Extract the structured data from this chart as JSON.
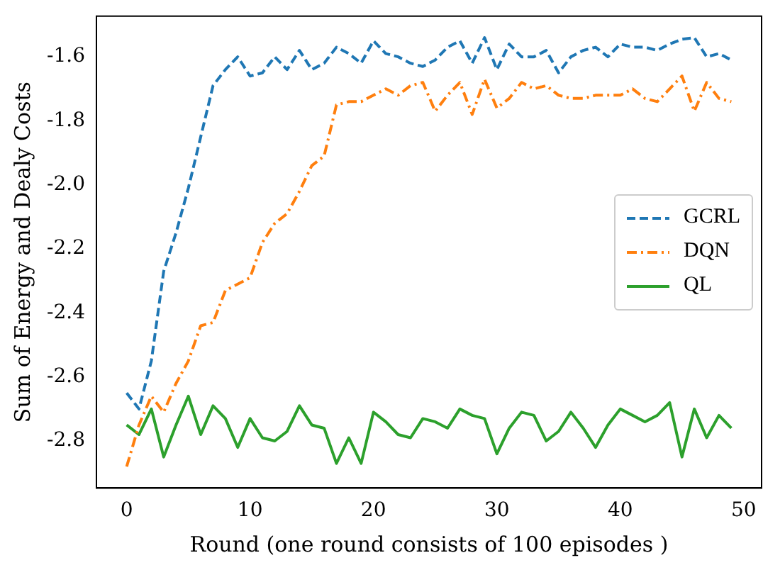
{
  "chart_data": {
    "type": "line",
    "xlabel": "Round (one round consists of 100 episodes )",
    "ylabel": "Sum of Energy and Dealy Costs",
    "x": [
      0,
      1,
      2,
      3,
      4,
      5,
      6,
      7,
      8,
      9,
      10,
      11,
      12,
      13,
      14,
      15,
      16,
      17,
      18,
      19,
      20,
      21,
      22,
      23,
      24,
      25,
      26,
      27,
      28,
      29,
      30,
      31,
      32,
      33,
      34,
      35,
      36,
      37,
      38,
      39,
      40,
      41,
      42,
      43,
      44,
      45,
      46,
      47,
      48,
      49
    ],
    "xlim": [
      -2.45,
      51.45
    ],
    "xticks": [
      0,
      10,
      20,
      30,
      40,
      50
    ],
    "ylim": [
      -2.947,
      -1.473
    ],
    "yticks": [
      {
        "value": -2.8,
        "label": "-2.8"
      },
      {
        "value": -2.6,
        "label": "-2.6"
      },
      {
        "value": -2.4,
        "label": "-2.4"
      },
      {
        "value": -2.2,
        "label": "-2.2"
      },
      {
        "value": -2.0,
        "label": "-2.0"
      },
      {
        "value": -1.8,
        "label": "-1.8"
      },
      {
        "value": -1.6,
        "label": "-1.6"
      }
    ],
    "grid": false,
    "legend": "center right",
    "marker": "none",
    "series": [
      {
        "name": "GCRL",
        "color": "#1f77b4",
        "line_style": "dashed",
        "values": [
          -2.65,
          -2.7,
          -2.55,
          -2.27,
          -2.15,
          -2.01,
          -1.85,
          -1.69,
          -1.64,
          -1.6,
          -1.66,
          -1.65,
          -1.6,
          -1.64,
          -1.58,
          -1.64,
          -1.62,
          -1.57,
          -1.59,
          -1.62,
          -1.55,
          -1.59,
          -1.6,
          -1.62,
          -1.63,
          -1.61,
          -1.57,
          -1.55,
          -1.62,
          -1.54,
          -1.64,
          -1.56,
          -1.6,
          -1.6,
          -1.58,
          -1.65,
          -1.6,
          -1.58,
          -1.57,
          -1.6,
          -1.56,
          -1.57,
          -1.57,
          -1.58,
          -1.56,
          -1.545,
          -1.54,
          -1.6,
          -1.59,
          -1.61
        ]
      },
      {
        "name": "DQN",
        "color": "#ff7f0e",
        "line_style": "dashdot",
        "values": [
          -2.88,
          -2.75,
          -2.66,
          -2.71,
          -2.62,
          -2.55,
          -2.44,
          -2.43,
          -2.33,
          -2.31,
          -2.29,
          -2.18,
          -2.12,
          -2.09,
          -2.02,
          -1.94,
          -1.91,
          -1.75,
          -1.74,
          -1.74,
          -1.72,
          -1.7,
          -1.72,
          -1.69,
          -1.68,
          -1.77,
          -1.72,
          -1.68,
          -1.78,
          -1.67,
          -1.76,
          -1.73,
          -1.68,
          -1.7,
          -1.69,
          -1.72,
          -1.73,
          -1.73,
          -1.72,
          -1.72,
          -1.72,
          -1.7,
          -1.73,
          -1.74,
          -1.7,
          -1.66,
          -1.77,
          -1.68,
          -1.73,
          -1.74
        ]
      },
      {
        "name": "QL",
        "color": "#2ca02c",
        "line_style": "solid",
        "values": [
          -2.75,
          -2.78,
          -2.7,
          -2.85,
          -2.75,
          -2.66,
          -2.78,
          -2.69,
          -2.73,
          -2.82,
          -2.73,
          -2.79,
          -2.8,
          -2.77,
          -2.69,
          -2.75,
          -2.76,
          -2.87,
          -2.79,
          -2.87,
          -2.71,
          -2.74,
          -2.78,
          -2.79,
          -2.73,
          -2.74,
          -2.76,
          -2.7,
          -2.72,
          -2.73,
          -2.84,
          -2.76,
          -2.71,
          -2.72,
          -2.8,
          -2.77,
          -2.71,
          -2.76,
          -2.82,
          -2.75,
          -2.7,
          -2.72,
          -2.74,
          -2.72,
          -2.68,
          -2.85,
          -2.7,
          -2.79,
          -2.72,
          -2.76
        ]
      }
    ]
  }
}
